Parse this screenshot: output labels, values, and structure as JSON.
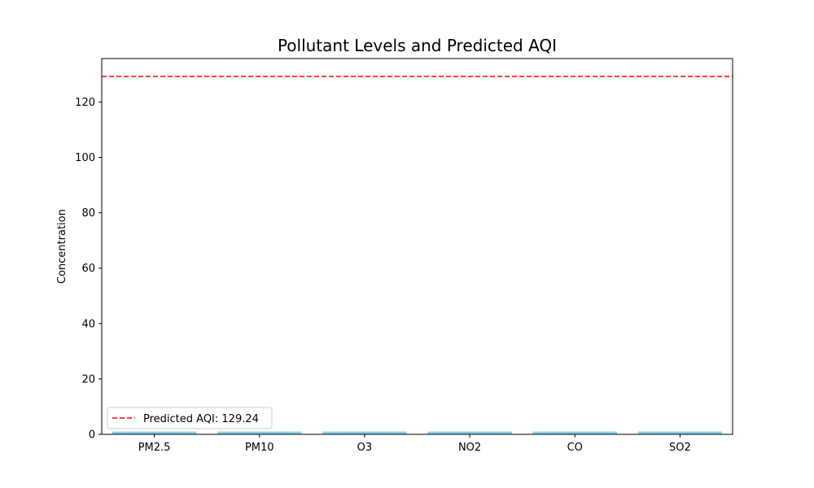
{
  "chart_data": {
    "type": "bar",
    "title": "Pollutant Levels and Predicted AQI",
    "xlabel": "",
    "ylabel": "Concentration",
    "categories": [
      "PM2.5",
      "PM10",
      "O3",
      "NO2",
      "CO",
      "SO2"
    ],
    "values": [
      1,
      1,
      1,
      1,
      1,
      1
    ],
    "ylim": [
      0,
      135.7
    ],
    "yticks": [
      0,
      20,
      40,
      60,
      80,
      100,
      120
    ],
    "bar_color": "#87ceeb",
    "reference_line": {
      "value": 129.24,
      "label": "Predicted AQI: 129.24",
      "color": "#ff0000",
      "style": "dashed"
    },
    "legend_position": "lower-left",
    "grid": false
  }
}
